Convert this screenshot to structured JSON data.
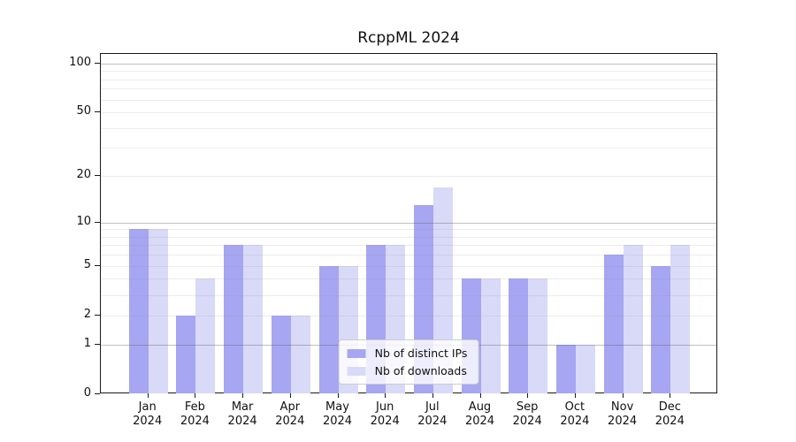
{
  "title": "RcppML 2024",
  "chart_data": {
    "type": "bar",
    "title": "RcppML 2024",
    "categories": [
      "Jan 2024",
      "Feb 2024",
      "Mar 2024",
      "Apr 2024",
      "May 2024",
      "Jun 2024",
      "Jul 2024",
      "Aug 2024",
      "Sep 2024",
      "Oct 2024",
      "Nov 2024",
      "Dec 2024"
    ],
    "series": [
      {
        "name": "Nb of distinct IPs",
        "color": "#a6a6f2",
        "values": [
          9,
          2,
          7,
          2,
          5,
          7,
          13,
          4,
          4,
          1,
          6,
          5
        ]
      },
      {
        "name": "Nb of downloads",
        "color": "#d9d9f8",
        "values": [
          9,
          4,
          7,
          2,
          5,
          7,
          17,
          4,
          4,
          1,
          7,
          7
        ]
      }
    ],
    "xlabel": "",
    "ylabel": "",
    "y_axis": {
      "scale": "log10(value+1)",
      "ticks": [
        0,
        1,
        2,
        5,
        10,
        20,
        50,
        100
      ],
      "major_gridlines": [
        1,
        10,
        100
      ],
      "minor_gridlines": [
        2,
        3,
        4,
        5,
        6,
        7,
        8,
        9,
        20,
        30,
        40,
        50,
        60,
        70,
        80,
        90
      ],
      "ylim": [
        0,
        117
      ]
    },
    "legend": {
      "position": "lower center",
      "entries": [
        "Nb of distinct IPs",
        "Nb of downloads"
      ]
    },
    "grid": true
  }
}
